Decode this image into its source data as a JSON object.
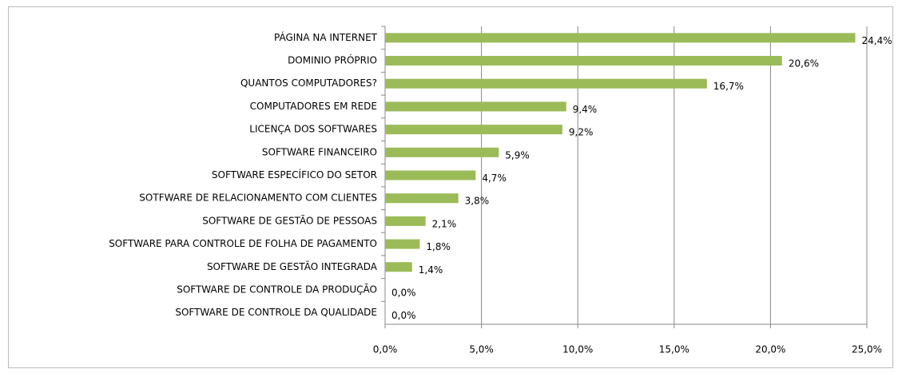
{
  "chart_data": {
    "type": "barh",
    "categories": [
      "PÁGINA NA INTERNET",
      "DOMINIO PRÓPRIO",
      "QUANTOS COMPUTADORES?",
      "COMPUTADORES EM REDE",
      "LICENÇA DOS SOFTWARES",
      "SOFTWARE FINANCEIRO",
      "SOFTWARE ESPECÍFICO DO SETOR",
      "SOTFWARE DE RELACIONAMENTO COM CLIENTES",
      "SOFTWARE DE GESTÃO DE PESSOAS",
      "SOFTWARE PARA CONTROLE DE FOLHA DE PAGAMENTO",
      "SOFTWARE DE GESTÃO INTEGRADA",
      "SOFTWARE DE CONTROLE DA PRODUÇÃO",
      "SOFTWARE DE CONTROLE DA QUALIDADE"
    ],
    "values": [
      24.4,
      20.6,
      16.7,
      9.4,
      9.2,
      5.9,
      4.7,
      3.8,
      2.1,
      1.8,
      1.4,
      0,
      0
    ],
    "value_labels": [
      "24,4%",
      "20,6%",
      "16,7%",
      "9,4%",
      "9,2%",
      "5,9%",
      "4,7%",
      "3,8%",
      "2,1%",
      "1,8%",
      "1,4%",
      "0,0%",
      "0,0%"
    ],
    "color": "#9bbb59",
    "xlim": [
      0,
      25
    ],
    "xticks": [
      {
        "value": 0,
        "label": "0,0%"
      },
      {
        "value": 5,
        "label": "5,0%"
      },
      {
        "value": 10,
        "label": "10,0%"
      },
      {
        "value": 15,
        "label": "15,0%"
      },
      {
        "value": 20,
        "label": "20,0%"
      },
      {
        "value": 25,
        "label": "25,0%"
      }
    ],
    "grid": true
  }
}
